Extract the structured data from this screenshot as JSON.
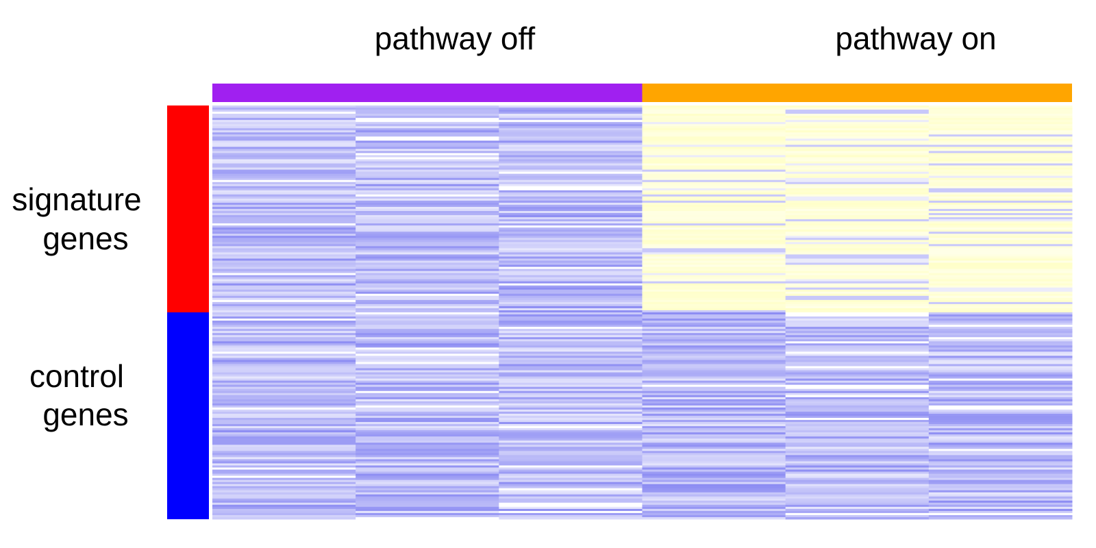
{
  "chart_data": {
    "type": "heatmap",
    "title": "",
    "column_groups": [
      {
        "label": "pathway off",
        "color": "#a020f0",
        "columns": 3
      },
      {
        "label": "pathway on",
        "color": "#ffa500",
        "columns": 3
      }
    ],
    "row_groups": [
      {
        "label_lines": [
          "signature",
          "genes"
        ],
        "color": "#ff0000",
        "rows": 100
      },
      {
        "label_lines": [
          "control",
          "genes"
        ],
        "color": "#0000ff",
        "rows": 100
      }
    ],
    "color_scale": {
      "low": "#4040e0",
      "mid": "#ffffff",
      "high": "#ffffd0"
    },
    "pattern": {
      "pathway_off_signature": "low (blue)",
      "pathway_off_control": "low (blue)",
      "pathway_on_signature": "high (pale yellow)",
      "pathway_on_control": "low (blue)"
    }
  }
}
